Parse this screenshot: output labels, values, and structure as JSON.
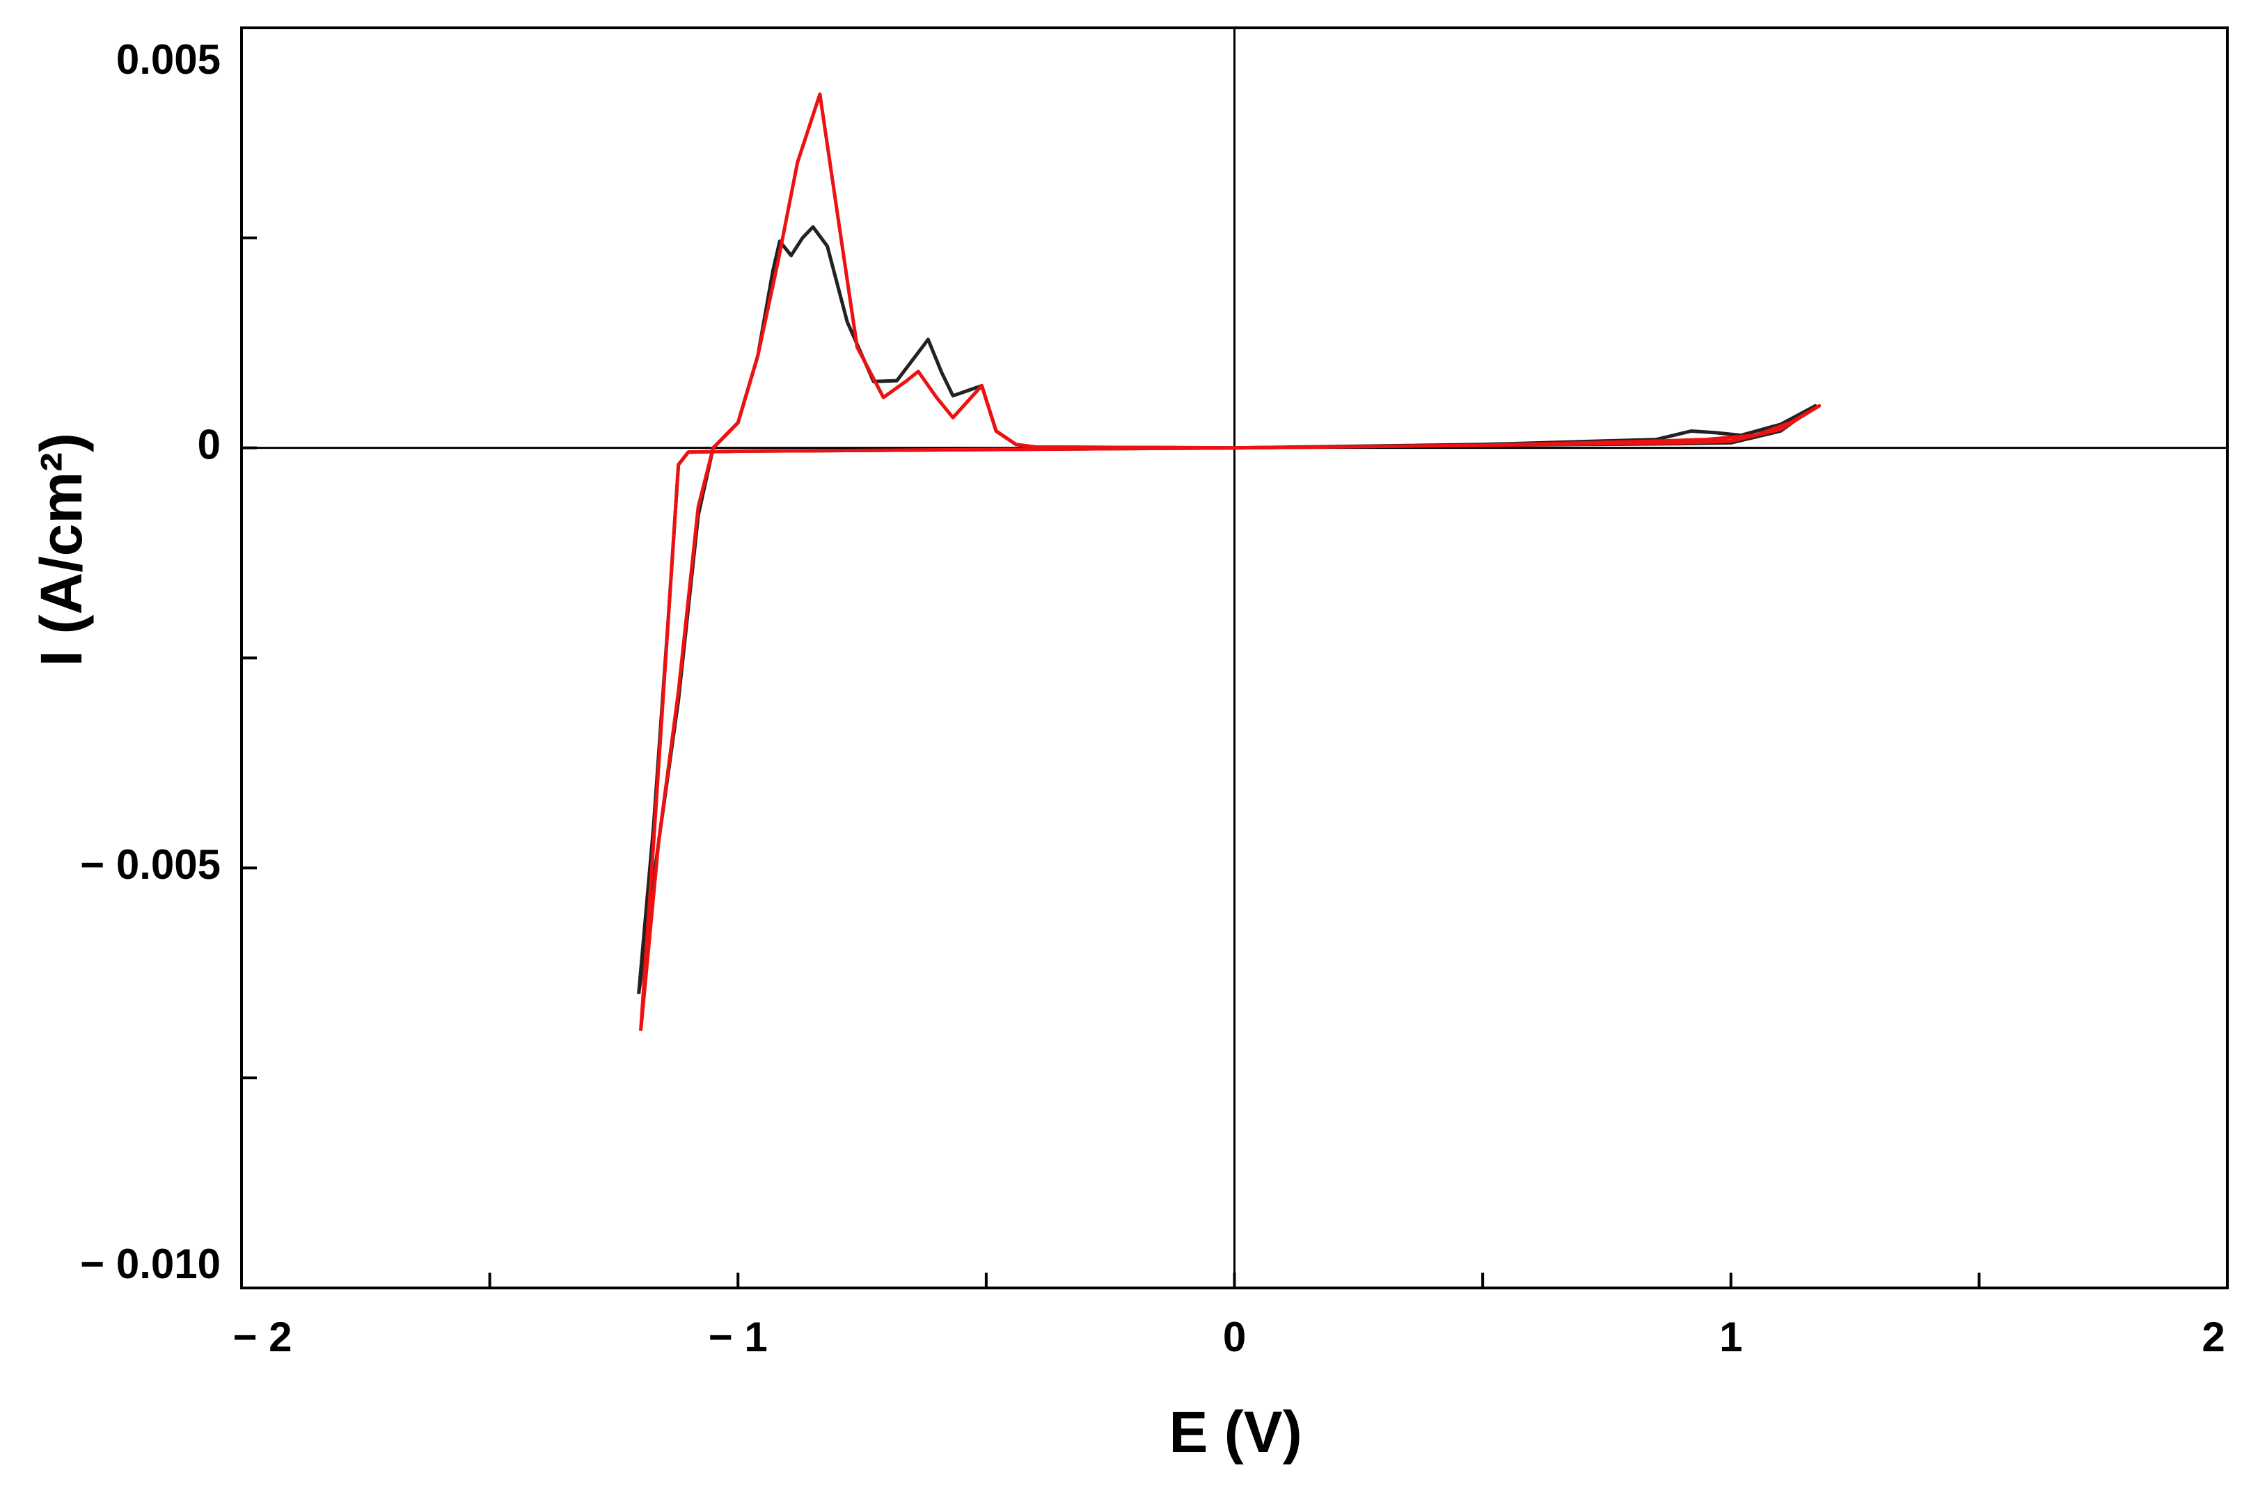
{
  "chart_data": {
    "type": "line",
    "xlabel": "E (V)",
    "ylabel": "I (A/cm²)",
    "xlim": [
      -2,
      2
    ],
    "ylim": [
      -0.01,
      0.005
    ],
    "xticks": [
      {
        "value": -2,
        "label": "− 2"
      },
      {
        "value": -1,
        "label": "− 1"
      },
      0,
      1,
      2
    ],
    "yticks": [
      0.005,
      0,
      {
        "value": -0.005,
        "label": "− 0.005"
      },
      {
        "value": -0.01,
        "label": "− 0.010"
      }
    ],
    "xminorticks": [
      -1.5,
      -0.5,
      0.5,
      1.5
    ],
    "yminorticks": [
      0.0025,
      -0.0025,
      -0.0075
    ],
    "zero_lines": true,
    "series": [
      {
        "color": "#222222",
        "x": [
          -1.2,
          -1.16,
          -1.12,
          -1.08,
          -1.05,
          -1.0,
          -0.96,
          -0.93,
          -0.916,
          -0.893,
          -0.87,
          -0.849,
          -0.82,
          -0.78,
          -0.727,
          -0.68,
          -0.617,
          -0.59,
          -0.567,
          -0.509,
          -0.48,
          -0.44,
          -0.4,
          0,
          0.5,
          0.85,
          0.92,
          0.97,
          1.02,
          1.1,
          1.17,
          1.1,
          1.0,
          0.9,
          0.5,
          0,
          -0.5,
          -1.0,
          -1.1,
          -1.12,
          -1.14,
          -1.17,
          -1.2
        ],
        "values": [
          -0.0065,
          -0.0047,
          -0.003,
          -0.0008,
          0,
          0.0003,
          0.0011,
          0.0021,
          0.00246,
          0.00229,
          0.0025,
          0.00263,
          0.0024,
          0.0015,
          0.00079,
          0.0008,
          0.00129,
          0.0009,
          0.00062,
          0.00074,
          0.0002,
          4e-05,
          1e-05,
          0,
          4e-05,
          0.0001,
          0.0002,
          0.00018,
          0.00015,
          0.00028,
          0.0005,
          0.0002,
          6e-05,
          5e-05,
          3e-05,
          0,
          -2e-05,
          -4e-05,
          -5e-05,
          -0.0002,
          -0.002,
          -0.0045,
          -0.0065
        ]
      },
      {
        "color": "#ee1111",
        "x": [
          -1.196,
          -1.16,
          -1.12,
          -1.08,
          -1.05,
          -1.0,
          -0.96,
          -0.92,
          -0.88,
          -0.835,
          -0.8,
          -0.76,
          -0.707,
          -0.66,
          -0.637,
          -0.6,
          -0.567,
          -0.509,
          -0.48,
          -0.44,
          -0.4,
          0,
          0.5,
          0.85,
          0.95,
          1.05,
          1.12,
          1.178,
          1.1,
          1.0,
          0.9,
          0.5,
          0,
          -0.5,
          -1.0,
          -1.1,
          -1.12,
          -1.14,
          -1.17,
          -1.196
        ],
        "values": [
          -0.00694,
          -0.0047,
          -0.0029,
          -0.0007,
          0,
          0.0003,
          0.0011,
          0.0022,
          0.0034,
          0.00421,
          0.0028,
          0.0012,
          0.0006,
          0.0008,
          0.00091,
          0.0006,
          0.00036,
          0.00074,
          0.0002,
          4e-05,
          1e-05,
          0,
          3e-05,
          8e-05,
          0.0001,
          0.00015,
          0.0003,
          0.0005,
          0.00022,
          8e-05,
          6e-05,
          3e-05,
          0,
          -2e-05,
          -4e-05,
          -5e-05,
          -0.0002,
          -0.002,
          -0.0047,
          -0.00694
        ]
      }
    ]
  }
}
